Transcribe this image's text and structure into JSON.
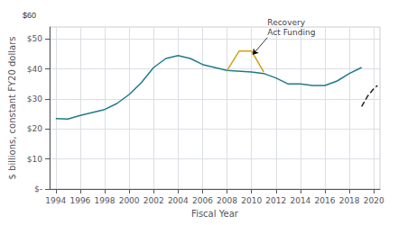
{
  "chart_data": {
    "type": "line",
    "xlabel": "Fiscal Year",
    "ylabel": "$ billions, constant FY20 dollars",
    "xlim": [
      1993.5,
      2020.5
    ],
    "ylim": [
      0,
      54
    ],
    "xticks": [
      1994,
      1996,
      1998,
      2000,
      2002,
      2004,
      2006,
      2008,
      2010,
      2012,
      2014,
      2016,
      2018,
      2020
    ],
    "yticks": [
      {
        "value": 0,
        "label": "$-"
      },
      {
        "value": 10,
        "label": "$10"
      },
      {
        "value": 20,
        "label": "$20"
      },
      {
        "value": 30,
        "label": "$30"
      },
      {
        "value": 40,
        "label": "$40"
      },
      {
        "value": 50,
        "label": "$50"
      }
    ],
    "grid": true,
    "series": [
      {
        "color": "#1F7A8C",
        "line_style": "solid",
        "x": [
          1994,
          1995,
          1996,
          1997,
          1998,
          1999,
          2000,
          2001,
          2002,
          2003,
          2004,
          2005,
          2006,
          2007,
          2008,
          2010,
          2011,
          2012,
          2013,
          2014,
          2015,
          2016,
          2017,
          2018,
          2019
        ],
        "values": [
          23.5,
          23.3,
          24.5,
          25.5,
          26.5,
          28.5,
          31.5,
          35.5,
          40.5,
          43.5,
          44.5,
          43.5,
          41.5,
          40.5,
          39.5,
          39.0,
          38.5,
          37.0,
          35.0,
          35.0,
          34.5,
          34.5,
          36.0,
          38.5,
          40.5
        ]
      },
      {
        "color": "#D4A017",
        "line_style": "solid",
        "x": [
          2008,
          2009,
          2010,
          2011
        ],
        "values": [
          39.5,
          46.0,
          46.0,
          39.0
        ]
      },
      {
        "color": "#222222",
        "line_style": "dashed",
        "x": [
          2019,
          2019.5,
          2020,
          2020.3
        ],
        "values": [
          27.5,
          31.0,
          33.5,
          34.5
        ]
      }
    ],
    "annotations": [
      {
        "text": "Recovery\nAct Funding",
        "x": 2011.3,
        "y": 50.5,
        "arrow_x": 2010.1,
        "arrow_y": 44.8
      },
      {
        "text": "$60"
      }
    ]
  }
}
